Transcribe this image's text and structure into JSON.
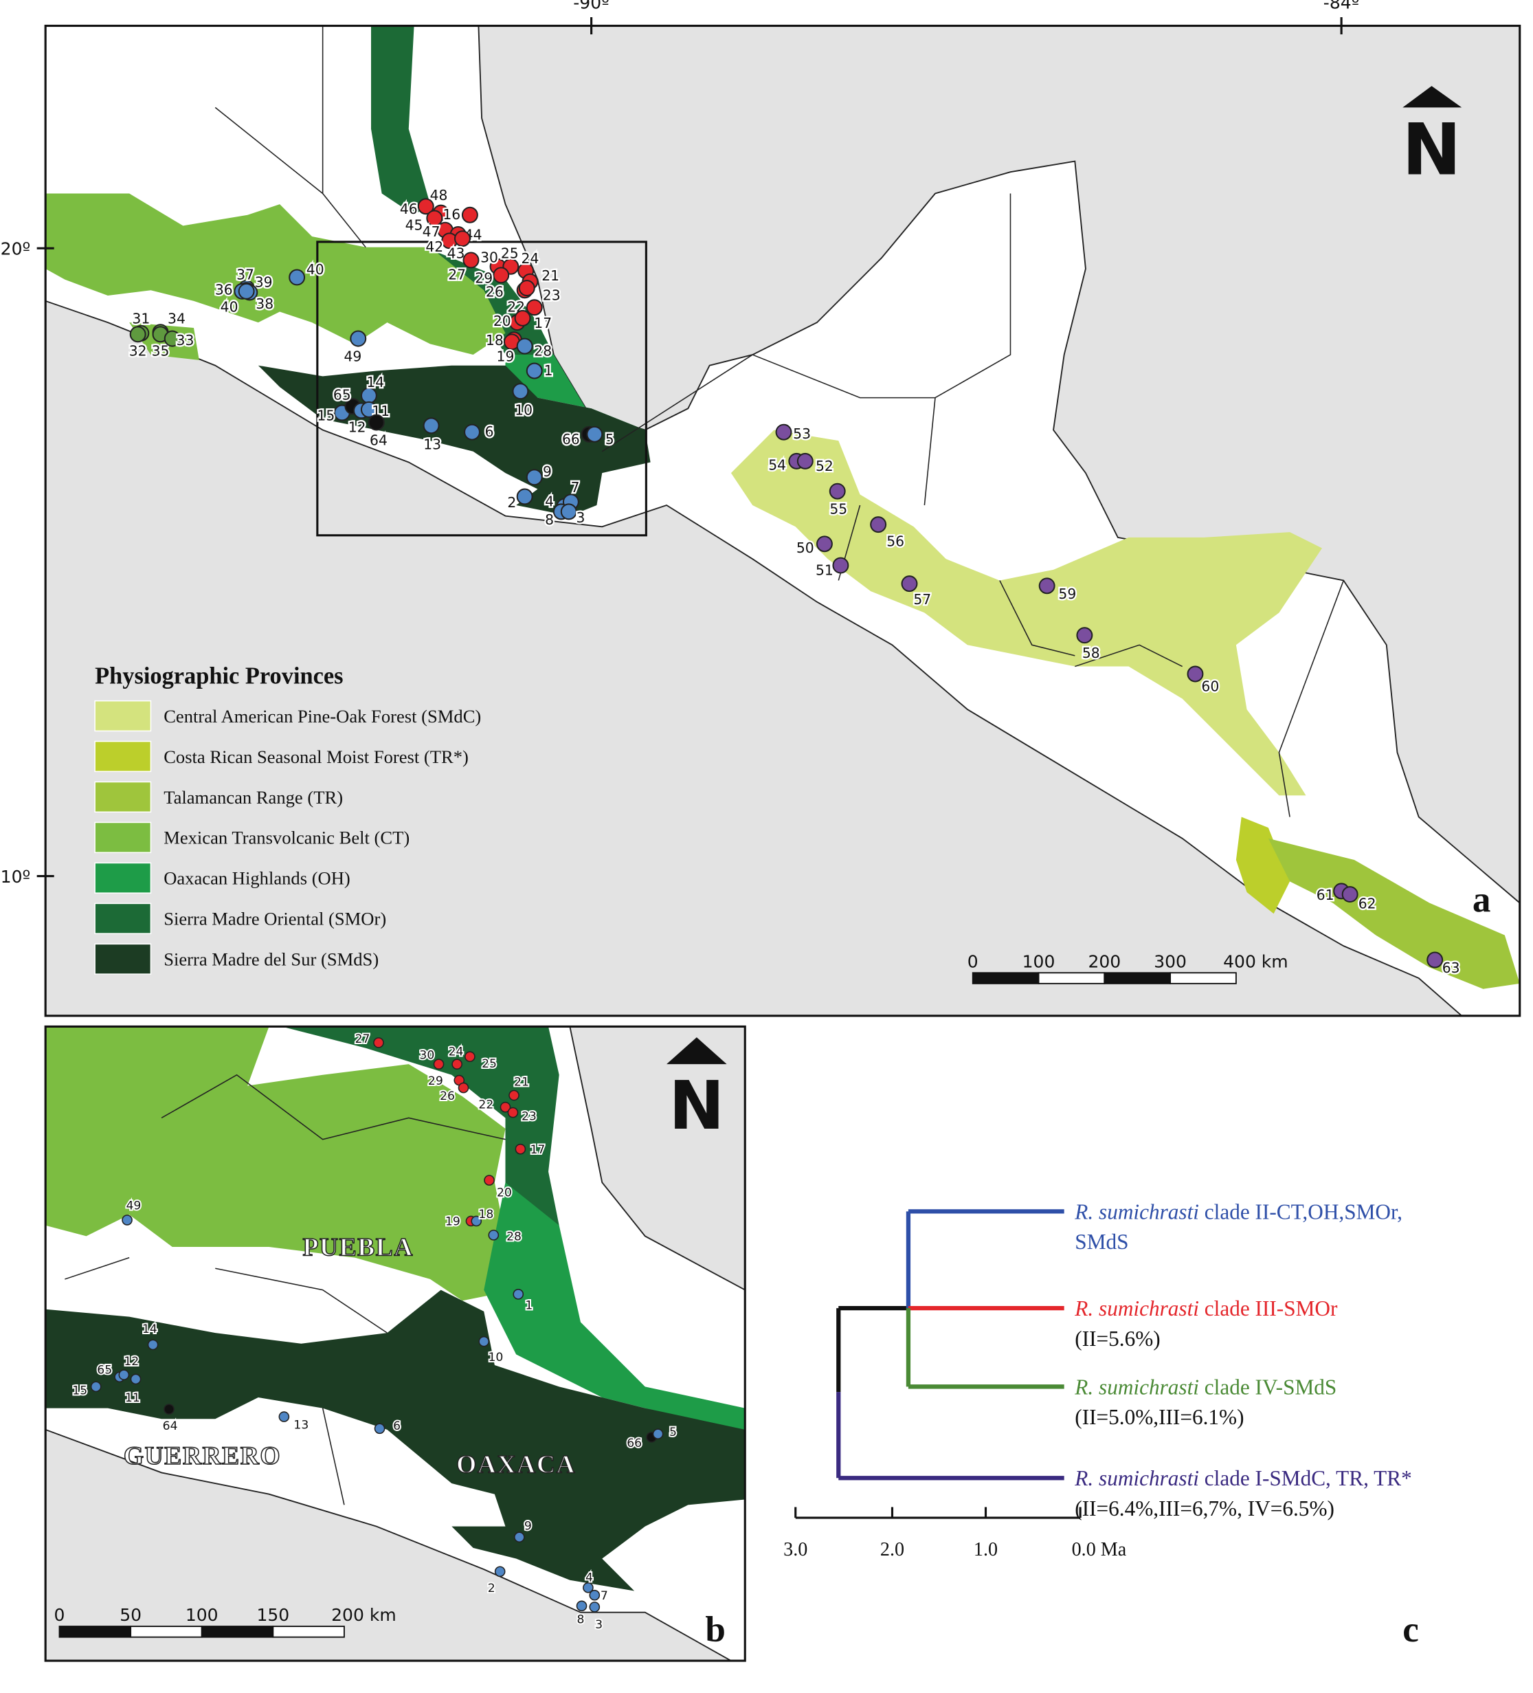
{
  "map_a": {
    "graticule": [
      "-90º",
      "-84º",
      "20º",
      "10º"
    ],
    "legend": {
      "title": "Physiographic Provinces",
      "items": [
        {
          "label": "Central American Pine-Oak Forest (SMdC)",
          "color": "#d4e37e"
        },
        {
          "label": "Costa Rican Seasonal Moist Forest (TR*)",
          "color": "#bccf2b"
        },
        {
          "label": "Talamancan Range (TR)",
          "color": "#9fc53c"
        },
        {
          "label": "Mexican Transvolcanic Belt (CT)",
          "color": "#7cbd41"
        },
        {
          "label": "Oaxacan Highlands (OH)",
          "color": "#1e9c48"
        },
        {
          "label": "Sierra Madre Oriental (SMOr)",
          "color": "#1c6a36"
        },
        {
          "label": "Sierra Madre del Sur (SMdS)",
          "color": "#1c3c23"
        }
      ]
    },
    "points": [
      {
        "label": "46",
        "color": "#e4262b"
      },
      {
        "label": "48",
        "color": "#e4262b"
      },
      {
        "label": "45",
        "color": "#e4262b"
      },
      {
        "label": "16",
        "color": "#e4262b"
      },
      {
        "label": "47",
        "color": "#e4262b"
      },
      {
        "label": "44",
        "color": "#e4262b"
      },
      {
        "label": "42",
        "color": "#e4262b"
      },
      {
        "label": "43",
        "color": "#e4262b"
      },
      {
        "label": "30",
        "color": "#e4262b"
      },
      {
        "label": "25",
        "color": "#e4262b"
      },
      {
        "label": "24",
        "color": "#e4262b"
      },
      {
        "label": "27",
        "color": "#e4262b"
      },
      {
        "label": "29",
        "color": "#e4262b"
      },
      {
        "label": "21",
        "color": "#e4262b"
      },
      {
        "label": "26",
        "color": "#e4262b"
      },
      {
        "label": "23",
        "color": "#e4262b"
      },
      {
        "label": "22",
        "color": "#e4262b"
      },
      {
        "label": "20",
        "color": "#e4262b"
      },
      {
        "label": "17",
        "color": "#e4262b"
      },
      {
        "label": "18",
        "color": "#e4262b"
      },
      {
        "label": "19",
        "color": "#e4262b"
      },
      {
        "label": "28",
        "color": "#4f86c5"
      },
      {
        "label": "1",
        "color": "#4f86c5"
      },
      {
        "label": "10",
        "color": "#4f86c5"
      },
      {
        "label": "66",
        "color": "#111111"
      },
      {
        "label": "5",
        "color": "#4f86c5"
      },
      {
        "label": "9",
        "color": "#4f86c5"
      },
      {
        "label": "2",
        "color": "#4f86c5"
      },
      {
        "label": "4",
        "color": "#4f86c5"
      },
      {
        "label": "7",
        "color": "#4f86c5"
      },
      {
        "label": "8",
        "color": "#4f86c5"
      },
      {
        "label": "3",
        "color": "#4f86c5"
      },
      {
        "label": "13",
        "color": "#4f86c5"
      },
      {
        "label": "6",
        "color": "#4f86c5"
      },
      {
        "label": "15",
        "color": "#4f86c5"
      },
      {
        "label": "65",
        "color": "#111111"
      },
      {
        "label": "14",
        "color": "#4f86c5"
      },
      {
        "label": "12",
        "color": "#4f86c5"
      },
      {
        "label": "11",
        "color": "#4f86c5"
      },
      {
        "label": "64",
        "color": "#111111"
      },
      {
        "label": "49",
        "color": "#4f86c5"
      },
      {
        "label": "40",
        "color": "#4f86c5"
      },
      {
        "label": "37",
        "color": "#4f86c5"
      },
      {
        "label": "39",
        "color": "#4f86c5"
      },
      {
        "label": "36",
        "color": "#4f86c5"
      },
      {
        "label": "38",
        "color": "#4f86c5"
      },
      {
        "label": "40",
        "color": "#4f86c5"
      },
      {
        "label": "31",
        "color": "#5f9a3f"
      },
      {
        "label": "34",
        "color": "#5f9a3f"
      },
      {
        "label": "32",
        "color": "#5f9a3f"
      },
      {
        "label": "35",
        "color": "#5f9a3f"
      },
      {
        "label": "33",
        "color": "#5f9a3f"
      },
      {
        "label": "53",
        "color": "#7a4e9e"
      },
      {
        "label": "54",
        "color": "#7a4e9e"
      },
      {
        "label": "52",
        "color": "#7a4e9e"
      },
      {
        "label": "55",
        "color": "#7a4e9e"
      },
      {
        "label": "56",
        "color": "#7a4e9e"
      },
      {
        "label": "50",
        "color": "#7a4e9e"
      },
      {
        "label": "51",
        "color": "#7a4e9e"
      },
      {
        "label": "57",
        "color": "#7a4e9e"
      },
      {
        "label": "59",
        "color": "#7a4e9e"
      },
      {
        "label": "58",
        "color": "#7a4e9e"
      },
      {
        "label": "60",
        "color": "#7a4e9e"
      },
      {
        "label": "61",
        "color": "#7a4e9e"
      },
      {
        "label": "62",
        "color": "#7a4e9e"
      },
      {
        "label": "63",
        "color": "#7a4e9e"
      }
    ],
    "scale": [
      "0",
      "100",
      "200",
      "300",
      "400 km"
    ],
    "north": "N",
    "panel": "a"
  },
  "map_b": {
    "regions": [
      "PUEBLA",
      "GUERRERO",
      "OAXACA"
    ],
    "points": [
      {
        "label": "27",
        "color": "#e4262b"
      },
      {
        "label": "30",
        "color": "#e4262b"
      },
      {
        "label": "24",
        "color": "#e4262b"
      },
      {
        "label": "25",
        "color": "#e4262b"
      },
      {
        "label": "29",
        "color": "#e4262b"
      },
      {
        "label": "26",
        "color": "#e4262b"
      },
      {
        "label": "21",
        "color": "#e4262b"
      },
      {
        "label": "22",
        "color": "#e4262b"
      },
      {
        "label": "23",
        "color": "#e4262b"
      },
      {
        "label": "17",
        "color": "#e4262b"
      },
      {
        "label": "20",
        "color": "#e4262b"
      },
      {
        "label": "19",
        "color": "#e4262b"
      },
      {
        "label": "18",
        "color": "#4f86c5"
      },
      {
        "label": "28",
        "color": "#4f86c5"
      },
      {
        "label": "49",
        "color": "#4f86c5"
      },
      {
        "label": "1",
        "color": "#4f86c5"
      },
      {
        "label": "10",
        "color": "#4f86c5"
      },
      {
        "label": "14",
        "color": "#4f86c5"
      },
      {
        "label": "65",
        "color": "#4f86c5"
      },
      {
        "label": "12",
        "color": "#4f86c5"
      },
      {
        "label": "11",
        "color": "#4f86c5"
      },
      {
        "label": "15",
        "color": "#4f86c5"
      },
      {
        "label": "64",
        "color": "#111111"
      },
      {
        "label": "13",
        "color": "#4f86c5"
      },
      {
        "label": "6",
        "color": "#4f86c5"
      },
      {
        "label": "66",
        "color": "#111111"
      },
      {
        "label": "5",
        "color": "#4f86c5"
      },
      {
        "label": "9",
        "color": "#4f86c5"
      },
      {
        "label": "2",
        "color": "#4f86c5"
      },
      {
        "label": "4",
        "color": "#4f86c5"
      },
      {
        "label": "7",
        "color": "#4f86c5"
      },
      {
        "label": "8",
        "color": "#4f86c5"
      },
      {
        "label": "3",
        "color": "#4f86c5"
      }
    ],
    "scale": [
      "0",
      "50",
      "100",
      "150",
      "200 km"
    ],
    "north": "N",
    "panel": "b"
  },
  "tree": {
    "clades": [
      {
        "species": "R. sumichrasti",
        "label": "clade II-CT,OH,SMOr,",
        "label2": "SMdS",
        "color": "#2e4fa8"
      },
      {
        "species": "R. sumichrasti",
        "label": "clade III-SMOr",
        "distances": "(II=5.6%)",
        "color": "#e4262b"
      },
      {
        "species": "R. sumichrasti",
        "label": "clade IV-SMdS",
        "distances": "(II=5.0%,III=6.1%)",
        "color": "#4a8a35"
      },
      {
        "species": "R. sumichrasti",
        "label": "clade I-SMdC, TR, TR*",
        "distances": "(II=6.4%,III=6,7%, IV=6.5%)",
        "color": "#3a2a80"
      }
    ],
    "axis": [
      "3.0",
      "2.0",
      "1.0",
      "0.0 Ma"
    ],
    "panel": "c"
  }
}
